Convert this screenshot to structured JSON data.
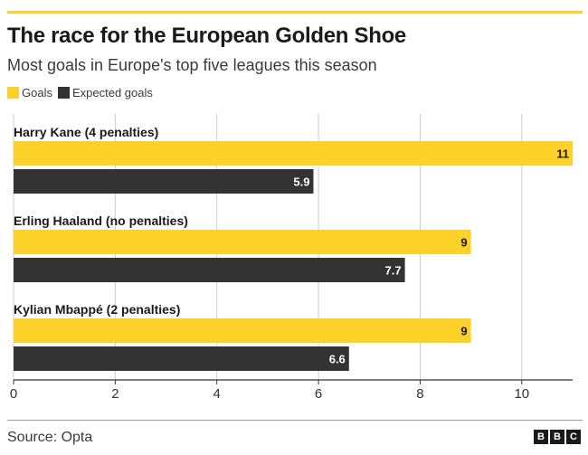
{
  "header": {
    "title": "The race for the European Golden Shoe",
    "subtitle": "Most goals in Europe's top five leagues this season"
  },
  "colors": {
    "goals": "#FCD12A",
    "expected": "#333333",
    "grid": "#cccccc",
    "axis": "#333333"
  },
  "chart_data": {
    "type": "bar",
    "orientation": "horizontal",
    "categories": [
      "Harry Kane (4 penalties)",
      "Erling Haaland (no penalties)",
      "Kylian Mbappé (2 penalties)"
    ],
    "series": [
      {
        "name": "Goals",
        "values": [
          11,
          9,
          9
        ],
        "value_labels": [
          "11",
          "9",
          "9"
        ]
      },
      {
        "name": "Expected goals",
        "values": [
          5.9,
          7.7,
          6.6
        ],
        "value_labels": [
          "5.9",
          "7.7",
          "6.6"
        ]
      }
    ],
    "xlim": [
      0,
      11
    ],
    "xticks": [
      0,
      2,
      4,
      6,
      8,
      10
    ],
    "tick_labels": [
      "0",
      "2",
      "4",
      "6",
      "8",
      "10"
    ],
    "legend_position": "top-left",
    "grid": true
  },
  "footer": {
    "source": "Source: Opta",
    "logo_letters": [
      "B",
      "B",
      "C"
    ]
  }
}
